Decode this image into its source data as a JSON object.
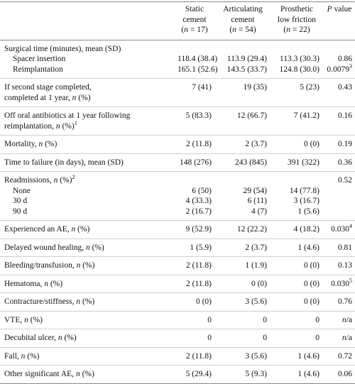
{
  "table": {
    "columns": [
      {
        "lines": [
          "Static",
          "cement",
          "(n = 17)"
        ]
      },
      {
        "lines": [
          "Articulating",
          "cement",
          "(n = 54)"
        ]
      },
      {
        "lines": [
          "Prosthetic",
          "low friction",
          "(n = 22)"
        ]
      },
      {
        "lines": [
          "P value"
        ]
      }
    ],
    "sections": [
      {
        "label": [
          "Surgical time (minutes), mean (SD)"
        ],
        "items": [
          {
            "label": "Spacer insertion",
            "cells": [
              "118.4 (38.4)",
              "113.9 (29.4)",
              "113.3 (30.3)",
              "0.86"
            ]
          },
          {
            "label": "Reimplantation",
            "cells": [
              "165.1 (52.6)",
              "143.5 (33.7)",
              "124.8 (30.0)",
              "0.0079"
            ],
            "p_sup": "3"
          }
        ]
      },
      {
        "label": [
          "If second stage completed,",
          "completed at 1 year, n (%)"
        ],
        "cells": [
          "7 (41)",
          "19 (35)",
          "5 (23)",
          "0.43"
        ]
      },
      {
        "label": [
          "Off oral antibiotics at 1 year following",
          "reimplantation, n (%)"
        ],
        "sup": "1",
        "cells": [
          "5 (83.3)",
          "12 (66.7)",
          "7 (41.2)",
          "0.16"
        ]
      },
      {
        "label": [
          "Mortality, n (%)"
        ],
        "cells": [
          "2 (11.8)",
          "2 (3.7)",
          "0 (0)",
          "0.19"
        ]
      },
      {
        "label": [
          "Time to failure (in days), mean (SD)"
        ],
        "cells": [
          "148 (276)",
          "243 (845)",
          "391 (322)",
          "0.36"
        ]
      },
      {
        "label": [
          "Readmissions, n (%)"
        ],
        "sup": "2",
        "cells": [
          "",
          "",
          "",
          "0.52"
        ],
        "items": [
          {
            "label": "None",
            "cells": [
              "6 (50)",
              "29 (54)",
              "14 (77.8)",
              ""
            ]
          },
          {
            "label": "30 d",
            "cells": [
              "4 (33.3)",
              "6 (11)",
              "3 (16.7)",
              ""
            ]
          },
          {
            "label": "90 d",
            "cells": [
              "2 (16.7)",
              "4 (7)",
              "1 (5.6)",
              ""
            ]
          }
        ]
      },
      {
        "label": [
          "Experienced an AE, n (%)"
        ],
        "cells": [
          "9 (52.9)",
          "12 (22.2)",
          "4 (18.2)",
          "0.030"
        ],
        "p_sup": "4"
      },
      {
        "label": [
          "Delayed wound healing, n (%)"
        ],
        "cells": [
          "1 (5.9)",
          "2 (3.7)",
          "1 (4.6)",
          "0.81"
        ]
      },
      {
        "label": [
          "Bleeding/transfusion, n (%)"
        ],
        "cells": [
          "2 (11.8)",
          "1 (1.9)",
          "0 (0)",
          "0.13"
        ]
      },
      {
        "label": [
          "Hematoma, n (%)"
        ],
        "cells": [
          "2 (11.8)",
          "0 (0)",
          "0 (0)",
          "0.030"
        ],
        "p_sup": "5"
      },
      {
        "label": [
          "Contracture/stiffness, n (%)"
        ],
        "cells": [
          "0 (0)",
          "3 (5.6)",
          "0 (0)",
          "0.76"
        ]
      },
      {
        "label": [
          "VTE, n (%)"
        ],
        "cells": [
          "0",
          "0",
          "0",
          "n/a"
        ]
      },
      {
        "label": [
          "Decubital ulcer, n (%)"
        ],
        "cells": [
          "0",
          "0",
          "0",
          "n/a"
        ]
      },
      {
        "label": [
          "Fall, n (%)"
        ],
        "cells": [
          "2 (11.8)",
          "3 (5.6)",
          "1 (4.6)",
          "0.72"
        ]
      },
      {
        "label": [
          "Other significant AE, n (%)"
        ],
        "cells": [
          "5 (29.4)",
          "5 (9.3)",
          "1 (4.6)",
          "0.06"
        ]
      }
    ]
  }
}
